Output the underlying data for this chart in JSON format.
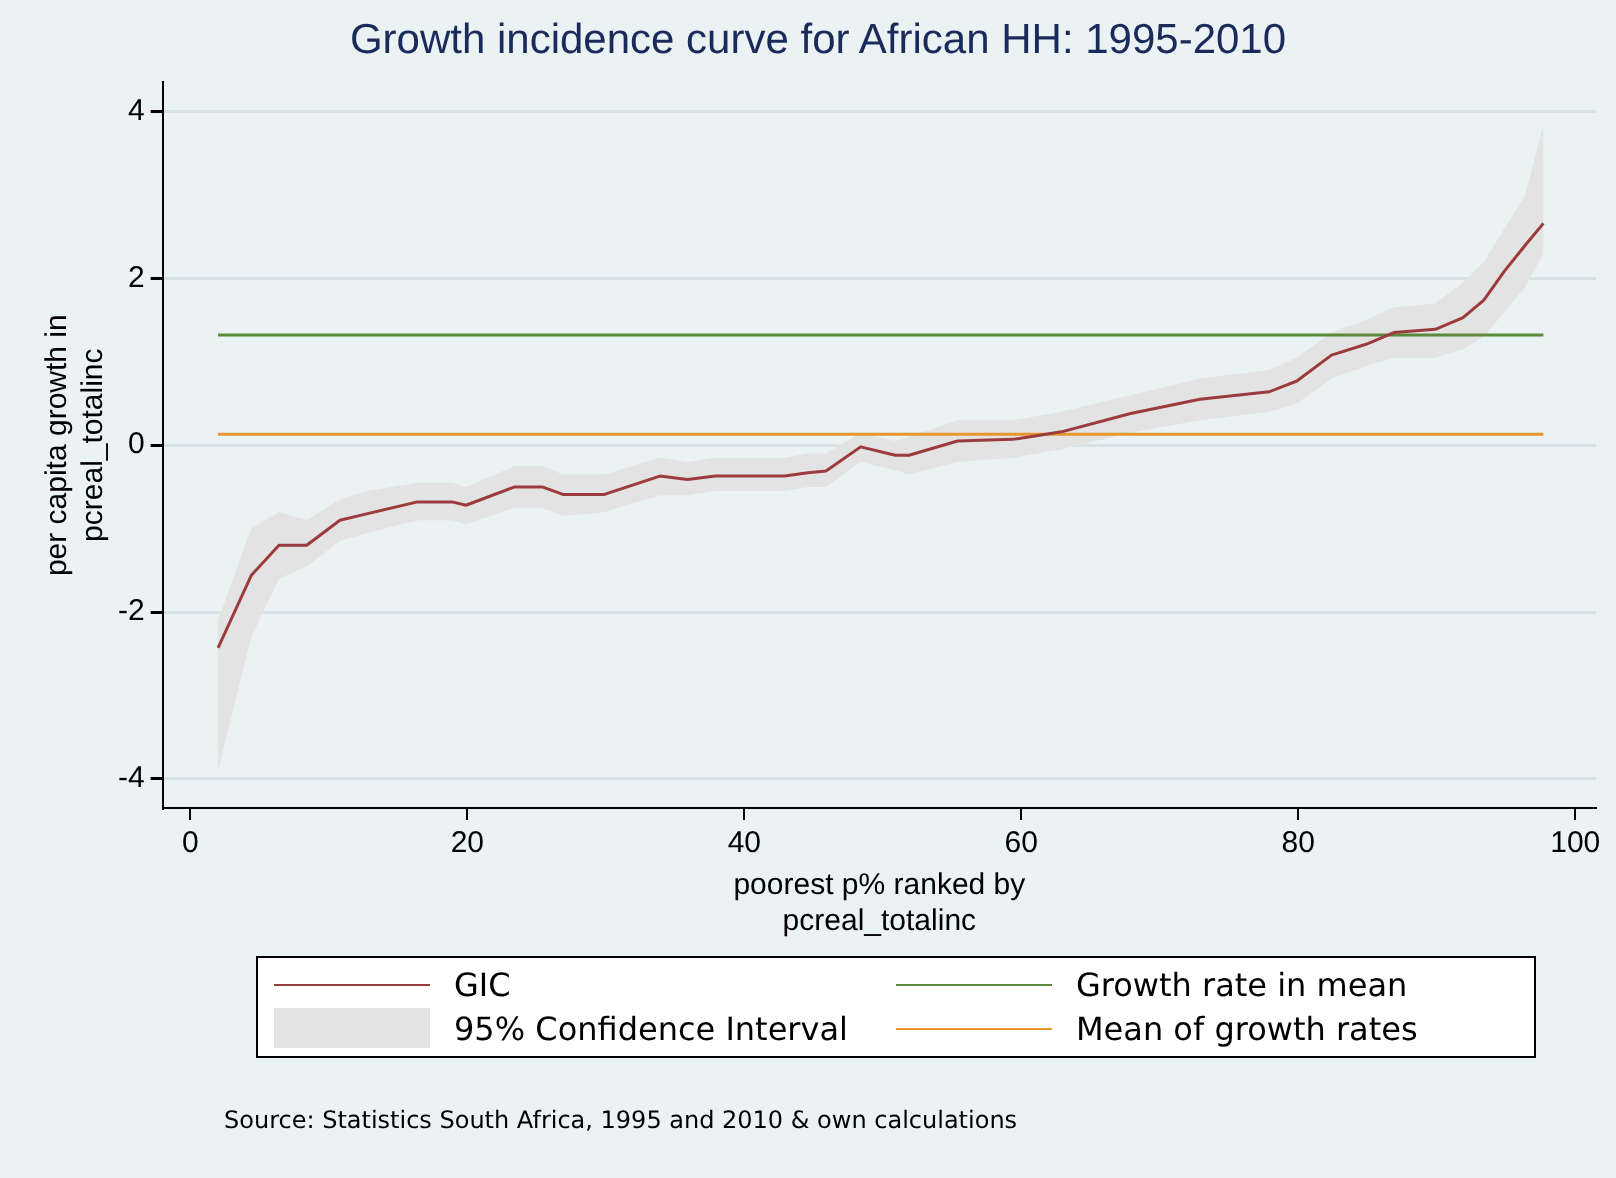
{
  "chart_data": {
    "type": "line",
    "title": "Growth incidence curve for African HH: 1995-2010",
    "xlabel": "poorest p% ranked by\npcreal_totalinc",
    "ylabel": "per capita growth in\npcreal_totalinc",
    "x": [
      2,
      4.4,
      6.4,
      8.4,
      10.8,
      12.8,
      16.4,
      18.9,
      19.9,
      23.4,
      25.4,
      26.9,
      29.9,
      33.9,
      35.9,
      37.9,
      42.9,
      44.6,
      45.9,
      48.4,
      50.9,
      51.9,
      55.4,
      59.4,
      62.9,
      67.9,
      72.9,
      77.9,
      79.9,
      82.4,
      84.9,
      86.9,
      89.9,
      91.9,
      93.4,
      94.9,
      96.4,
      97.7
    ],
    "series": [
      {
        "name": "GIC",
        "type": "line",
        "color": "#9b3b3b",
        "values": [
          -2.43,
          -1.56,
          -1.2,
          -1.2,
          -0.9,
          -0.82,
          -0.68,
          -0.68,
          -0.72,
          -0.5,
          -0.5,
          -0.59,
          -0.59,
          -0.37,
          -0.41,
          -0.37,
          -0.37,
          -0.33,
          -0.31,
          -0.02,
          -0.12,
          -0.12,
          0.05,
          0.07,
          0.16,
          0.38,
          0.55,
          0.64,
          0.77,
          1.08,
          1.21,
          1.35,
          1.39,
          1.53,
          1.74,
          2.09,
          2.4,
          2.66
        ],
        "lower": [
          -3.9,
          -2.3,
          -1.6,
          -1.45,
          -1.15,
          -1.05,
          -0.9,
          -0.9,
          -0.95,
          -0.75,
          -0.75,
          -0.85,
          -0.8,
          -0.6,
          -0.6,
          -0.55,
          -0.55,
          -0.5,
          -0.5,
          -0.2,
          -0.3,
          -0.35,
          -0.2,
          -0.15,
          -0.05,
          0.15,
          0.3,
          0.4,
          0.5,
          0.8,
          0.95,
          1.05,
          1.05,
          1.15,
          1.3,
          1.6,
          1.9,
          2.3
        ],
        "upper": [
          -2.1,
          -1.0,
          -0.8,
          -0.9,
          -0.65,
          -0.55,
          -0.45,
          -0.45,
          -0.5,
          -0.25,
          -0.25,
          -0.35,
          -0.35,
          -0.15,
          -0.2,
          -0.15,
          -0.15,
          -0.1,
          -0.1,
          0.15,
          0.05,
          0.1,
          0.3,
          0.3,
          0.4,
          0.6,
          0.8,
          0.9,
          1.05,
          1.35,
          1.5,
          1.65,
          1.7,
          1.95,
          2.2,
          2.6,
          3.0,
          3.85
        ]
      }
    ],
    "ref_lines": [
      {
        "axis": "y",
        "value": 1.32,
        "label": "Growth rate in mean",
        "color": "#5a8a3a"
      },
      {
        "axis": "y",
        "value": 0.13,
        "label": "Mean of growth rates",
        "color": "#e8962e"
      }
    ],
    "xlim": [
      -2,
      101.5
    ],
    "xticks": [
      0,
      20,
      40,
      60,
      80,
      100
    ],
    "ylim": [
      -4.35,
      4.35
    ],
    "yticks": [
      -4,
      -2,
      0,
      2,
      4
    ],
    "grid": "y",
    "legend": "bottom",
    "marker": "none",
    "line_style": "solid",
    "annotations": [
      "95% Confidence Interval",
      "Source: Statistics South Africa, 1995 and 2010 & own calculations"
    ]
  }
}
